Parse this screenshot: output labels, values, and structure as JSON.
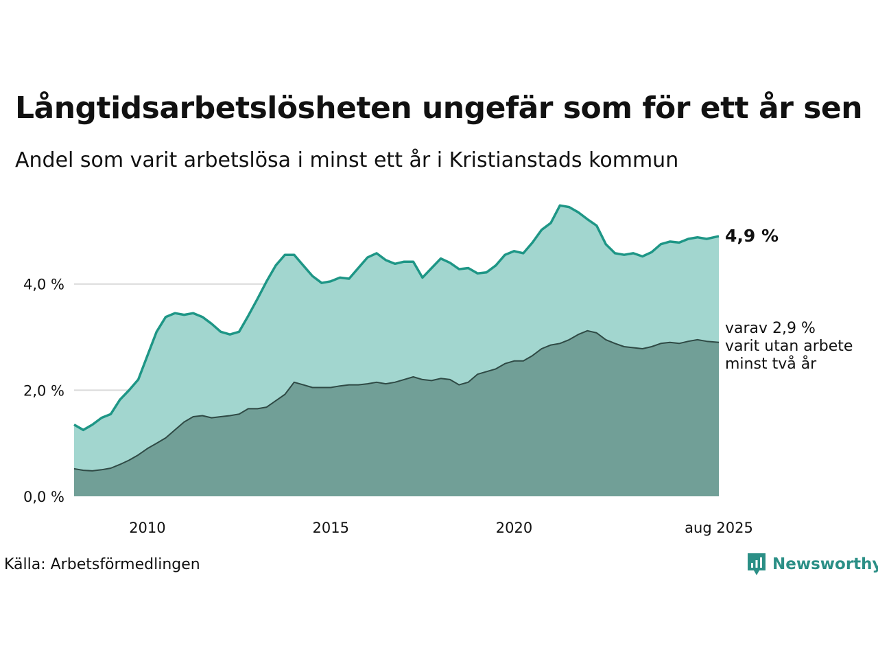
{
  "title": "Långtidsarbetslösheten ungefär som för ett år sen",
  "subtitle": "Andel som varit arbetslösa i minst ett år i Kristianstads kommun",
  "source": "Källa: Arbetsförmedlingen",
  "brand": {
    "name": "Newsworthy",
    "icon": "newsworthy-logo-icon"
  },
  "colors": {
    "total_fill": "#a2d6cf",
    "total_line": "#1e9686",
    "long_fill": "#719f97",
    "long_line": "#2f4a45",
    "grid": "#d9d9d9",
    "brand": "#2b8f86"
  },
  "chart_data": {
    "type": "area",
    "x_ticks": [
      {
        "date": "2010-01",
        "label": "2010"
      },
      {
        "date": "2015-01",
        "label": "2015"
      },
      {
        "date": "2020-01",
        "label": "2020"
      },
      {
        "date": "2025-08",
        "label": "aug 2025"
      }
    ],
    "x_range": [
      "2008-01",
      "2025-08"
    ],
    "y_ticks": [
      {
        "value": 0,
        "label": "0,0 %"
      },
      {
        "value": 2,
        "label": "2,0 %"
      },
      {
        "value": 4,
        "label": "4,0 %"
      }
    ],
    "ylim": [
      0,
      5.6
    ],
    "grid": true,
    "series": [
      {
        "key": "total",
        "points": [
          [
            "2008-01",
            1.35
          ],
          [
            "2008-04",
            1.25
          ],
          [
            "2008-07",
            1.35
          ],
          [
            "2008-10",
            1.48
          ],
          [
            "2009-01",
            1.55
          ],
          [
            "2009-04",
            1.82
          ],
          [
            "2009-07",
            2.0
          ],
          [
            "2009-10",
            2.2
          ],
          [
            "2010-01",
            2.65
          ],
          [
            "2010-04",
            3.1
          ],
          [
            "2010-07",
            3.38
          ],
          [
            "2010-10",
            3.45
          ],
          [
            "2011-01",
            3.42
          ],
          [
            "2011-04",
            3.45
          ],
          [
            "2011-07",
            3.38
          ],
          [
            "2011-10",
            3.25
          ],
          [
            "2012-01",
            3.1
          ],
          [
            "2012-04",
            3.05
          ],
          [
            "2012-07",
            3.1
          ],
          [
            "2012-10",
            3.4
          ],
          [
            "2013-01",
            3.72
          ],
          [
            "2013-04",
            4.05
          ],
          [
            "2013-07",
            4.35
          ],
          [
            "2013-10",
            4.55
          ],
          [
            "2014-01",
            4.55
          ],
          [
            "2014-04",
            4.35
          ],
          [
            "2014-07",
            4.15
          ],
          [
            "2014-10",
            4.02
          ],
          [
            "2015-01",
            4.05
          ],
          [
            "2015-04",
            4.12
          ],
          [
            "2015-07",
            4.1
          ],
          [
            "2015-10",
            4.3
          ],
          [
            "2016-01",
            4.5
          ],
          [
            "2016-04",
            4.58
          ],
          [
            "2016-07",
            4.45
          ],
          [
            "2016-10",
            4.38
          ],
          [
            "2017-01",
            4.42
          ],
          [
            "2017-04",
            4.42
          ],
          [
            "2017-07",
            4.12
          ],
          [
            "2017-10",
            4.3
          ],
          [
            "2018-01",
            4.48
          ],
          [
            "2018-04",
            4.4
          ],
          [
            "2018-07",
            4.28
          ],
          [
            "2018-10",
            4.3
          ],
          [
            "2019-01",
            4.2
          ],
          [
            "2019-04",
            4.22
          ],
          [
            "2019-07",
            4.35
          ],
          [
            "2019-10",
            4.55
          ],
          [
            "2020-01",
            4.62
          ],
          [
            "2020-04",
            4.58
          ],
          [
            "2020-07",
            4.78
          ],
          [
            "2020-10",
            5.02
          ],
          [
            "2021-01",
            5.15
          ],
          [
            "2021-04",
            5.48
          ],
          [
            "2021-07",
            5.45
          ],
          [
            "2021-10",
            5.35
          ],
          [
            "2022-01",
            5.22
          ],
          [
            "2022-04",
            5.1
          ],
          [
            "2022-07",
            4.75
          ],
          [
            "2022-10",
            4.58
          ],
          [
            "2023-01",
            4.55
          ],
          [
            "2023-04",
            4.58
          ],
          [
            "2023-07",
            4.52
          ],
          [
            "2023-10",
            4.6
          ],
          [
            "2024-01",
            4.75
          ],
          [
            "2024-04",
            4.8
          ],
          [
            "2024-07",
            4.78
          ],
          [
            "2024-10",
            4.85
          ],
          [
            "2025-01",
            4.88
          ],
          [
            "2025-04",
            4.85
          ],
          [
            "2025-08",
            4.9
          ]
        ]
      },
      {
        "key": "long",
        "points": [
          [
            "2008-01",
            0.52
          ],
          [
            "2008-04",
            0.49
          ],
          [
            "2008-07",
            0.48
          ],
          [
            "2008-10",
            0.5
          ],
          [
            "2009-01",
            0.53
          ],
          [
            "2009-04",
            0.6
          ],
          [
            "2009-07",
            0.68
          ],
          [
            "2009-10",
            0.78
          ],
          [
            "2010-01",
            0.9
          ],
          [
            "2010-04",
            1.0
          ],
          [
            "2010-07",
            1.1
          ],
          [
            "2010-10",
            1.25
          ],
          [
            "2011-01",
            1.4
          ],
          [
            "2011-04",
            1.5
          ],
          [
            "2011-07",
            1.52
          ],
          [
            "2011-10",
            1.48
          ],
          [
            "2012-01",
            1.5
          ],
          [
            "2012-04",
            1.52
          ],
          [
            "2012-07",
            1.55
          ],
          [
            "2012-10",
            1.65
          ],
          [
            "2013-01",
            1.65
          ],
          [
            "2013-04",
            1.68
          ],
          [
            "2013-07",
            1.8
          ],
          [
            "2013-10",
            1.92
          ],
          [
            "2014-01",
            2.15
          ],
          [
            "2014-04",
            2.1
          ],
          [
            "2014-07",
            2.05
          ],
          [
            "2014-10",
            2.05
          ],
          [
            "2015-01",
            2.05
          ],
          [
            "2015-04",
            2.08
          ],
          [
            "2015-07",
            2.1
          ],
          [
            "2015-10",
            2.1
          ],
          [
            "2016-01",
            2.12
          ],
          [
            "2016-04",
            2.15
          ],
          [
            "2016-07",
            2.12
          ],
          [
            "2016-10",
            2.15
          ],
          [
            "2017-01",
            2.2
          ],
          [
            "2017-04",
            2.25
          ],
          [
            "2017-07",
            2.2
          ],
          [
            "2017-10",
            2.18
          ],
          [
            "2018-01",
            2.22
          ],
          [
            "2018-04",
            2.2
          ],
          [
            "2018-07",
            2.1
          ],
          [
            "2018-10",
            2.15
          ],
          [
            "2019-01",
            2.3
          ],
          [
            "2019-04",
            2.35
          ],
          [
            "2019-07",
            2.4
          ],
          [
            "2019-10",
            2.5
          ],
          [
            "2020-01",
            2.55
          ],
          [
            "2020-04",
            2.55
          ],
          [
            "2020-07",
            2.65
          ],
          [
            "2020-10",
            2.78
          ],
          [
            "2021-01",
            2.85
          ],
          [
            "2021-04",
            2.88
          ],
          [
            "2021-07",
            2.95
          ],
          [
            "2021-10",
            3.05
          ],
          [
            "2022-01",
            3.12
          ],
          [
            "2022-04",
            3.08
          ],
          [
            "2022-07",
            2.95
          ],
          [
            "2022-10",
            2.88
          ],
          [
            "2023-01",
            2.82
          ],
          [
            "2023-04",
            2.8
          ],
          [
            "2023-07",
            2.78
          ],
          [
            "2023-10",
            2.82
          ],
          [
            "2024-01",
            2.88
          ],
          [
            "2024-04",
            2.9
          ],
          [
            "2024-07",
            2.88
          ],
          [
            "2024-10",
            2.92
          ],
          [
            "2025-01",
            2.95
          ],
          [
            "2025-04",
            2.92
          ],
          [
            "2025-08",
            2.9
          ]
        ]
      }
    ],
    "annotations": [
      {
        "key": "total",
        "text": "4,9 %"
      },
      {
        "key": "long",
        "lines": [
          "varav 2,9 %",
          "varit utan arbete",
          "minst två år"
        ]
      }
    ]
  }
}
